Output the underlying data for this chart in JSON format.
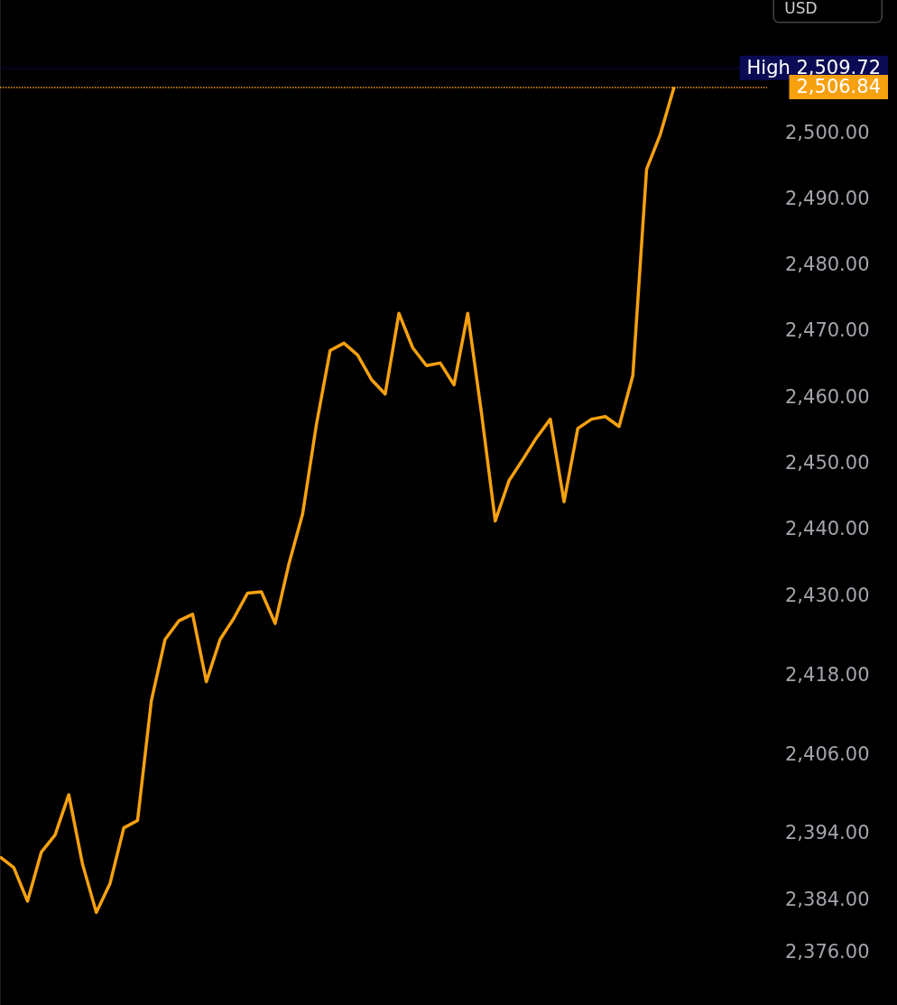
{
  "chart_data": {
    "type": "line",
    "categories": [
      null,
      null,
      null,
      null,
      null,
      null,
      null,
      null,
      null,
      null,
      null,
      null,
      null,
      null,
      null,
      null,
      null,
      null,
      null,
      null,
      null,
      null,
      null,
      null,
      null,
      null,
      null,
      null,
      null,
      null,
      null,
      null,
      null,
      null,
      null,
      null,
      null,
      null,
      null,
      null,
      null,
      null,
      null,
      null,
      null,
      null,
      null,
      null,
      null,
      null
    ],
    "series": [
      {
        "color": "#f7a10f",
        "values": [
          2390.4,
          2388.8,
          2383.7,
          2391.1,
          2393.7,
          2399.8,
          2389.3,
          2382,
          2386.4,
          2394.8,
          2395.9,
          2414,
          2423.3,
          2426.1,
          2427.1,
          2416.9,
          2423.3,
          2426.5,
          2430.3,
          2430.5,
          2425.7,
          2434.7,
          2442.3,
          2455.8,
          2467,
          2468.1,
          2466.3,
          2462.6,
          2460.4,
          2472.6,
          2467.4,
          2464.7,
          2465.1,
          2461.8,
          2472.6,
          2457.5,
          2441.2,
          2447.3,
          2450.5,
          2453.8,
          2456.6,
          2444.1,
          2455.2,
          2456.6,
          2457,
          2455.5,
          2463.2,
          2494.4,
          2499.7,
          2506.84
        ]
      }
    ],
    "ylim": [
      2368,
      2520
    ],
    "yticks": [
      {
        "value": 2376,
        "label": "2,376.00"
      },
      {
        "value": 2384,
        "label": "2,384.00"
      },
      {
        "value": 2394,
        "label": "2,394.00"
      },
      {
        "value": 2406,
        "label": "2,406.00"
      },
      {
        "value": 2418,
        "label": "2,418.00"
      },
      {
        "value": 2430,
        "label": "2,430.00"
      },
      {
        "value": 2440,
        "label": "2,440.00"
      },
      {
        "value": 2450,
        "label": "2,450.00"
      },
      {
        "value": 2460,
        "label": "2,460.00"
      },
      {
        "value": 2470,
        "label": "2,470.00"
      },
      {
        "value": 2480,
        "label": "2,480.00"
      },
      {
        "value": 2490,
        "label": "2,490.00"
      },
      {
        "value": 2500,
        "label": "2,500.00"
      }
    ],
    "ref_lines": [
      {
        "axis": "y",
        "value": 2509.72,
        "label": "High 2,509.72",
        "color": "#0b0b55",
        "line_style": "dotted"
      },
      {
        "axis": "y",
        "value": 2506.84,
        "label": "2,506.84",
        "color": "#f7a10f",
        "line_style": "dotted"
      }
    ],
    "annotations": [
      "USD"
    ],
    "grid": false,
    "tick_labels": "y",
    "marker": "none",
    "line_style": "solid"
  }
}
